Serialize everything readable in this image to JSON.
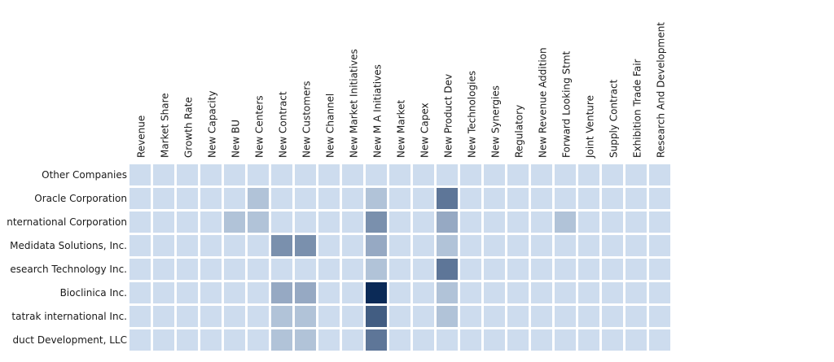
{
  "chart_data": {
    "type": "heatmap",
    "title": "",
    "columns": [
      "Revenue",
      "Market Share",
      "Growth Rate",
      "New Capacity",
      "New BU",
      "New Centers",
      "New Contract",
      "New Customers",
      "New Channel",
      "New Market Initiatives",
      "New M A Initiatives",
      "New Market",
      "New Capex",
      "New Product Dev",
      "New Technologies",
      "New Synergies",
      "Regulatory",
      "New Revenue Addition",
      "Forward Looking Stmt",
      "Joint Venture",
      "Supply Contract",
      "Exhibition Trade Fair",
      "Research And Development"
    ],
    "rows": [
      "Other Companies",
      "Oracle Corporation",
      "nternational Corporation",
      "Medidata Solutions, Inc.",
      "esearch Technology Inc.",
      "Bioclinica Inc.",
      "tatrak international Inc.",
      "duct Development, LLC"
    ],
    "values": [
      [
        0,
        0,
        0,
        0,
        0,
        0,
        0,
        0,
        0,
        0,
        0,
        0,
        0,
        0,
        0,
        0,
        0,
        0,
        0,
        0,
        0,
        0,
        0
      ],
      [
        0,
        0,
        0,
        0,
        0,
        1,
        0,
        0,
        0,
        0,
        1,
        0,
        0,
        4,
        0,
        0,
        0,
        0,
        0,
        0,
        0,
        0,
        0
      ],
      [
        0,
        0,
        0,
        0,
        1,
        1,
        0,
        0,
        0,
        0,
        3,
        0,
        0,
        2,
        0,
        0,
        0,
        0,
        1,
        0,
        0,
        0,
        0
      ],
      [
        0,
        0,
        0,
        0,
        0,
        0,
        3,
        3,
        0,
        0,
        2,
        0,
        0,
        1,
        0,
        0,
        0,
        0,
        0,
        0,
        0,
        0,
        0
      ],
      [
        0,
        0,
        0,
        0,
        0,
        0,
        0,
        0,
        0,
        0,
        1,
        0,
        0,
        4,
        0,
        0,
        0,
        0,
        0,
        0,
        0,
        0,
        0
      ],
      [
        0,
        0,
        0,
        0,
        0,
        0,
        2,
        2,
        0,
        0,
        7,
        0,
        0,
        1,
        0,
        0,
        0,
        0,
        0,
        0,
        0,
        0,
        0
      ],
      [
        0,
        0,
        0,
        0,
        0,
        0,
        1,
        1,
        0,
        0,
        5,
        0,
        0,
        1,
        0,
        0,
        0,
        0,
        0,
        0,
        0,
        0,
        0
      ],
      [
        0,
        0,
        0,
        0,
        0,
        0,
        1,
        1,
        0,
        0,
        4,
        0,
        0,
        0,
        0,
        0,
        0,
        0,
        0,
        0,
        0,
        0,
        0
      ]
    ],
    "value_range": [
      0,
      7
    ],
    "color_low": "#cddcee",
    "color_high": "#0b2a57",
    "legend": "none",
    "grid": false
  }
}
